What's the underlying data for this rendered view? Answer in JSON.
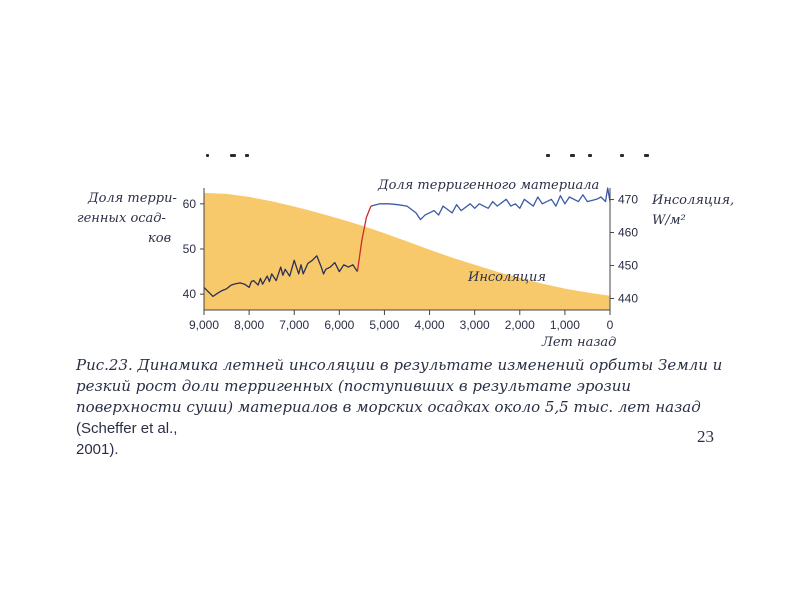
{
  "chart_data": {
    "type": "area",
    "left_axis_label": [
      "Доля терри-",
      "генных осад-",
      "ков"
    ],
    "right_axis_label": [
      "Инсоляция,",
      "W/м²"
    ],
    "x_axis_label": "Лет назад",
    "x_ticks": [
      "9,000",
      "8,000",
      "7,000",
      "6,000",
      "5,000",
      "4,000",
      "3,000",
      "2,000",
      "1,000",
      "0"
    ],
    "left_ticks": [
      "40",
      "50",
      "60"
    ],
    "right_ticks": [
      "440",
      "450",
      "460",
      "470"
    ],
    "xlim": [
      9000,
      0
    ],
    "left_ylim": [
      36.5,
      63.5
    ],
    "right_ylim": [
      436.5,
      473.5
    ],
    "legend_terrigenous": "Доля терригенного материала",
    "legend_insolation": "Инсоляция",
    "series": [
      {
        "name": "Инсоляция",
        "axis": "right",
        "color": "#f7c96b",
        "x": [
          9000,
          8500,
          8000,
          7500,
          7000,
          6500,
          6000,
          5500,
          5000,
          4500,
          4000,
          3500,
          3000,
          2500,
          2000,
          1500,
          1000,
          500,
          0
        ],
        "y": [
          472,
          471.7,
          470.8,
          469.5,
          467.9,
          466.1,
          464.2,
          462.1,
          459.8,
          457.3,
          454.8,
          452.4,
          450.2,
          448.1,
          446.2,
          444.5,
          443.0,
          441.8,
          440.8
        ]
      },
      {
        "name": "Доля терригенного материала",
        "axis": "left",
        "color": "#2b2f55",
        "x": [
          9000,
          8900,
          8800,
          8700,
          8600,
          8500,
          8400,
          8300,
          8200,
          8100,
          8000,
          7950,
          7900,
          7800,
          7750,
          7700,
          7600,
          7550,
          7500,
          7400,
          7300,
          7250,
          7200,
          7100,
          7000,
          6900,
          6850,
          6800,
          6700,
          6600,
          6500,
          6400,
          6350,
          6300,
          6200,
          6100,
          6000,
          5900,
          5800,
          5700,
          5600
        ],
        "y": [
          41.5,
          40.5,
          39.5,
          40.2,
          40.8,
          41.2,
          42.0,
          42.3,
          42.5,
          42.2,
          41.5,
          42.8,
          43.0,
          42.0,
          43.5,
          42.2,
          44.0,
          42.8,
          44.5,
          43.0,
          46.0,
          44.2,
          45.5,
          44.0,
          47.5,
          44.5,
          46.5,
          44.5,
          46.8,
          47.5,
          48.5,
          46.0,
          44.5,
          45.5,
          46.0,
          47.0,
          45.0,
          46.5,
          46.0,
          46.5,
          45.0
        ]
      },
      {
        "name": "Резкий рост",
        "axis": "left",
        "color": "#cc2b2b",
        "x": [
          5600,
          5500,
          5400,
          5300
        ],
        "y": [
          45.0,
          52.0,
          57.0,
          59.5
        ]
      },
      {
        "name": "Доля терригенного материала (после)",
        "axis": "left",
        "color": "#3b5aa8",
        "x": [
          5300,
          5100,
          4900,
          4700,
          4500,
          4300,
          4200,
          4100,
          3900,
          3800,
          3700,
          3500,
          3400,
          3300,
          3100,
          3000,
          2900,
          2700,
          2600,
          2500,
          2300,
          2200,
          2100,
          2000,
          1900,
          1700,
          1600,
          1500,
          1300,
          1200,
          1100,
          1000,
          900,
          700,
          600,
          500,
          300,
          200,
          100,
          50,
          0
        ],
        "y": [
          59.5,
          60.0,
          60.0,
          59.8,
          59.5,
          58.0,
          56.5,
          57.5,
          58.5,
          57.5,
          59.5,
          58.0,
          59.8,
          58.5,
          60.0,
          59.0,
          60.0,
          59.0,
          60.5,
          59.5,
          61.0,
          59.5,
          60.0,
          59.0,
          61.0,
          59.5,
          61.5,
          60.0,
          61.0,
          59.5,
          61.8,
          60.0,
          61.5,
          60.5,
          62.0,
          60.5,
          61.0,
          61.5,
          60.5,
          63.5,
          60.5
        ]
      }
    ]
  },
  "caption": {
    "text": "Рис.23. Динамика летней инсоляции в результате изменений орбиты Земли и резкий рост доли терригенных (поступивших в результате эрозии поверхности суши) материалов в морских осадках около 5,5 тыс. лет назад",
    "citation": "(Scheffer et al., 2001).",
    "citation_main": "(Scheffer et al.,",
    "citation_end": "2001)."
  },
  "page_number": "23"
}
